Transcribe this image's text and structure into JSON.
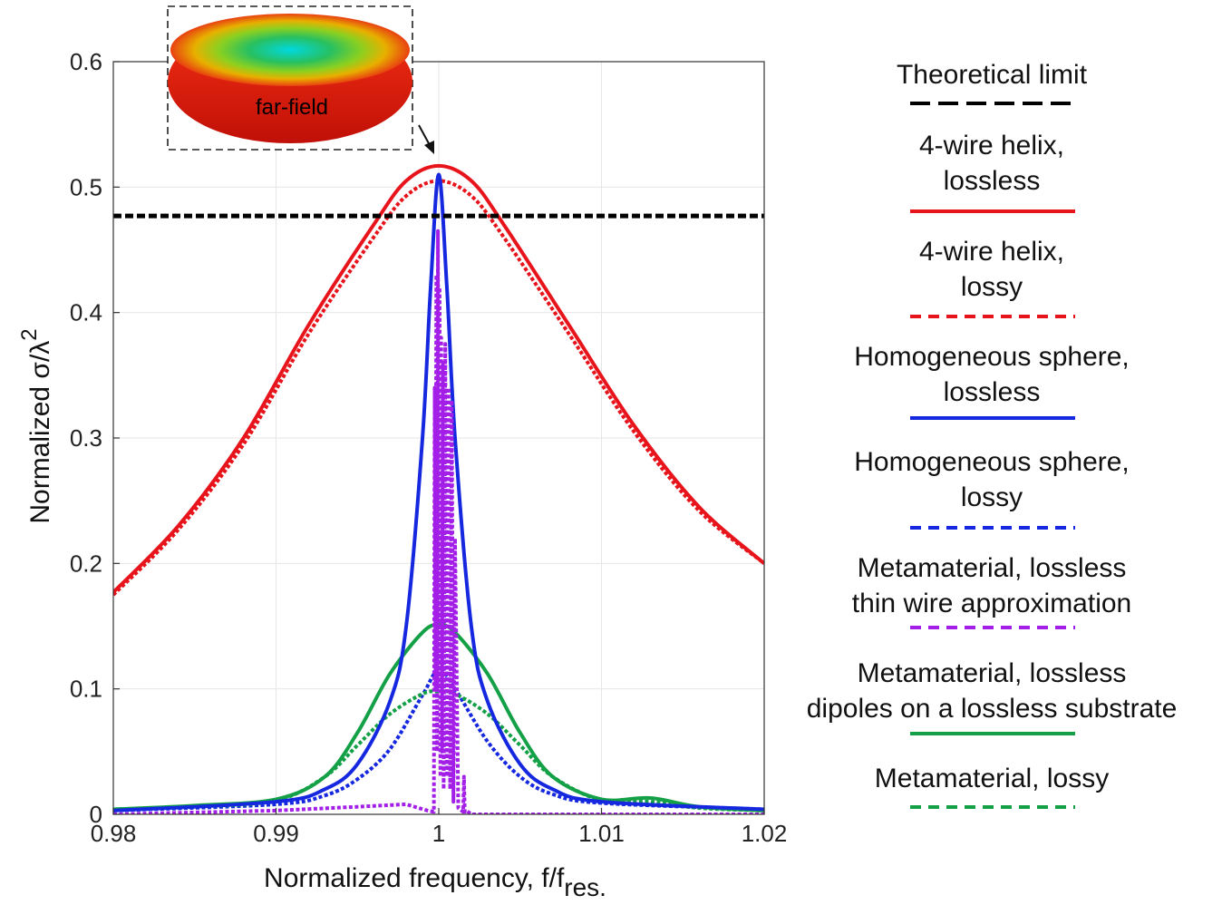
{
  "chart_data": {
    "type": "line",
    "xlabel": "Normalized frequency, f/f",
    "xlabel_sub": "res.",
    "ylabel": "Normalized σ/λ",
    "ylabel_sup": "2",
    "xlim": [
      0.98,
      1.02
    ],
    "ylim": [
      0,
      0.6
    ],
    "xticks": [
      0.98,
      0.99,
      1.0,
      1.01,
      1.02
    ],
    "xtick_labels": [
      "0.98",
      "0.99",
      "1",
      "1.01",
      "1.02"
    ],
    "yticks": [
      0,
      0.1,
      0.2,
      0.3,
      0.4,
      0.5,
      0.6
    ],
    "ytick_labels": [
      "0",
      "0.1",
      "0.2",
      "0.3",
      "0.4",
      "0.5",
      "0.6"
    ],
    "grid": true,
    "legend_position": "right, outside plot",
    "inset_label": "far-field",
    "series": [
      {
        "name": "Theoretical limit",
        "color": "#000000",
        "style": "dashed",
        "x": [
          0.98,
          1.02
        ],
        "y": [
          0.477,
          0.477
        ]
      },
      {
        "name": "4-wire helix, lossless",
        "color": "#e8141b",
        "style": "solid",
        "x": [
          0.98,
          0.984,
          0.988,
          0.992,
          0.996,
          0.998,
          1.0,
          1.002,
          1.004,
          1.008,
          1.012,
          1.016,
          1.02
        ],
        "y": [
          0.177,
          0.23,
          0.3,
          0.39,
          0.47,
          0.505,
          0.517,
          0.505,
          0.47,
          0.39,
          0.31,
          0.245,
          0.2
        ]
      },
      {
        "name": "4-wire helix, lossy",
        "color": "#e8141b",
        "style": "dotted",
        "x": [
          0.98,
          0.984,
          0.988,
          0.992,
          0.996,
          0.998,
          1.0,
          1.002,
          1.004,
          1.008,
          1.012,
          1.016,
          1.02
        ],
        "y": [
          0.175,
          0.227,
          0.295,
          0.383,
          0.46,
          0.493,
          0.505,
          0.493,
          0.46,
          0.383,
          0.305,
          0.242,
          0.2
        ]
      },
      {
        "name": "Homogeneous sphere, lossless",
        "color": "#1528e0",
        "style": "solid",
        "x": [
          0.98,
          0.99,
          0.993,
          0.995,
          0.997,
          0.998,
          0.999,
          0.9995,
          1.0,
          1.0005,
          1.001,
          1.002,
          1.003,
          1.005,
          1.007,
          1.01,
          1.02
        ],
        "y": [
          0.003,
          0.01,
          0.02,
          0.04,
          0.09,
          0.15,
          0.3,
          0.42,
          0.51,
          0.42,
          0.3,
          0.15,
          0.09,
          0.04,
          0.02,
          0.01,
          0.004
        ]
      },
      {
        "name": "Homogeneous sphere, lossy",
        "color": "#1528e0",
        "style": "dotted",
        "x": [
          0.98,
          0.99,
          0.993,
          0.995,
          0.997,
          0.999,
          1.0,
          1.001,
          1.003,
          1.005,
          1.007,
          1.01,
          1.02
        ],
        "y": [
          0.003,
          0.008,
          0.015,
          0.028,
          0.052,
          0.095,
          0.115,
          0.1,
          0.058,
          0.03,
          0.016,
          0.009,
          0.004
        ]
      },
      {
        "name": "Metamaterial, lossless thin wire approximation",
        "color": "#a31fe8",
        "style": "dotted",
        "x": [
          0.98,
          0.99,
          0.995,
          0.998,
          0.9993,
          0.9997,
          0.99975,
          0.9998,
          0.99985,
          0.9999,
          0.99995,
          1.0,
          1.00005,
          1.0001,
          1.00015,
          1.0002,
          1.00025,
          1.0003,
          1.0004,
          1.0005,
          1.0006,
          1.0007,
          1.0008,
          1.0009,
          1.001,
          1.0012,
          1.0015,
          1.00155,
          1.0016,
          1.0017,
          1.002,
          1.005,
          1.02
        ],
        "y": [
          0.0,
          0.003,
          0.006,
          0.008,
          0.003,
          0.002,
          0.34,
          0.1,
          0.43,
          0.05,
          0.465,
          0.1,
          0.42,
          0.03,
          0.38,
          0.05,
          0.36,
          0.02,
          0.375,
          0.03,
          0.34,
          0.02,
          0.33,
          0.01,
          0.22,
          0.005,
          0.002,
          0.03,
          0.002,
          0.003,
          0.0,
          0.0,
          0.0
        ]
      },
      {
        "name": "Metamaterial, lossless dipoles on a lossless substrate",
        "color": "#14a046",
        "style": "solid",
        "x": [
          0.98,
          0.985,
          0.99,
          0.993,
          0.995,
          0.997,
          0.999,
          1.0,
          1.001,
          1.003,
          1.005,
          1.007,
          1.01,
          1.013,
          1.016,
          1.02
        ],
        "y": [
          0.004,
          0.007,
          0.012,
          0.03,
          0.065,
          0.112,
          0.145,
          0.151,
          0.145,
          0.112,
          0.065,
          0.03,
          0.012,
          0.013,
          0.006,
          0.003
        ]
      },
      {
        "name": "Metamaterial, lossy",
        "color": "#14a046",
        "style": "dotted",
        "x": [
          0.98,
          0.985,
          0.99,
          0.993,
          0.995,
          0.997,
          0.999,
          1.0,
          1.001,
          1.003,
          1.005,
          1.007,
          1.01,
          1.013,
          1.016,
          1.02
        ],
        "y": [
          0.004,
          0.006,
          0.011,
          0.03,
          0.055,
          0.08,
          0.096,
          0.098,
          0.096,
          0.08,
          0.055,
          0.03,
          0.011,
          0.01,
          0.005,
          0.003
        ]
      }
    ]
  }
}
